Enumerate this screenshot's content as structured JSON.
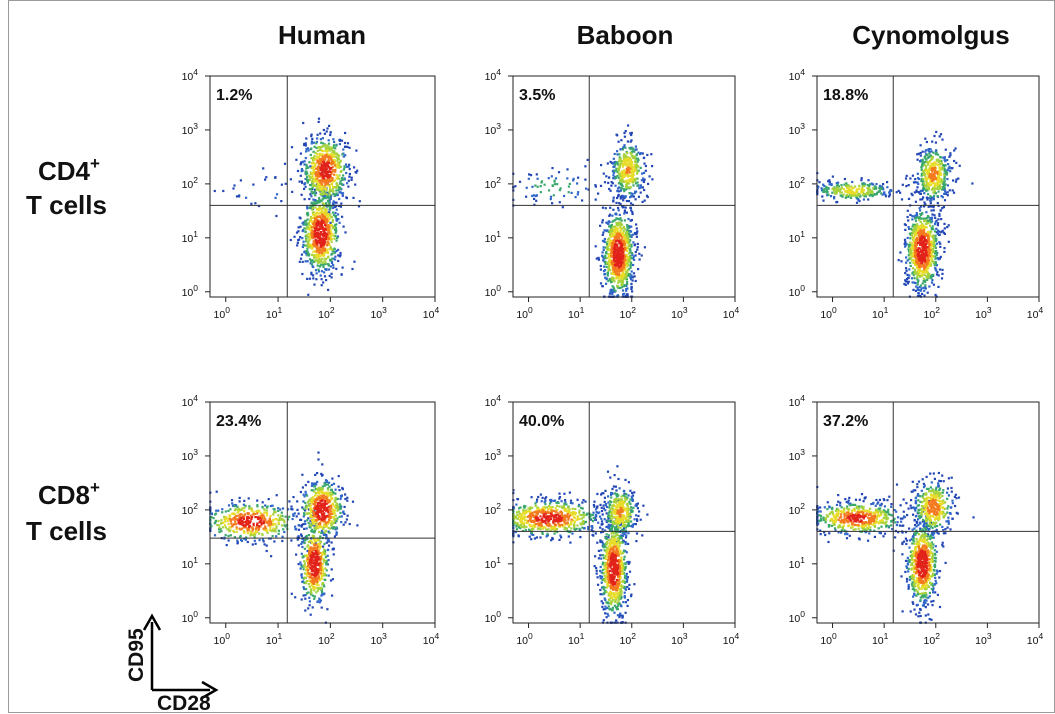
{
  "figure": {
    "column_headers": [
      "Human",
      "Baboon",
      "Cynomolgus"
    ],
    "row_labels": [
      {
        "line1": "CD4",
        "sup": "+",
        "line2": "T cells"
      },
      {
        "line1": "CD8",
        "sup": "+",
        "line2": "T cells"
      }
    ],
    "legend": {
      "y_label": "CD95",
      "x_label": "CD28"
    }
  },
  "chart_data": [
    {
      "type": "scatter",
      "species": "Human",
      "cell_type": "CD4+ T cells",
      "quadrant_percent": "1.2%",
      "x_scale": "log",
      "y_scale": "log",
      "xlim": [
        0.5,
        10000
      ],
      "ylim": [
        0.8,
        10000
      ],
      "x_gate": 15,
      "y_gate": 40,
      "x_ticks": [
        "10^0",
        "10^1",
        "10^2",
        "10^3",
        "10^4"
      ],
      "y_ticks": [
        "10^0",
        "10^1",
        "10^2",
        "10^3",
        "10^4"
      ],
      "populations": [
        {
          "cx": 80,
          "cy": 180,
          "sx": 0.22,
          "sy": 0.32,
          "n": 650
        },
        {
          "cx": 65,
          "cy": 12,
          "sx": 0.18,
          "sy": 0.38,
          "n": 750
        },
        {
          "cx": 5,
          "cy": 70,
          "sx": 0.55,
          "sy": 0.18,
          "n": 25
        }
      ]
    },
    {
      "type": "scatter",
      "species": "Baboon",
      "cell_type": "CD4+ T cells",
      "quadrant_percent": "3.5%",
      "x_scale": "log",
      "y_scale": "log",
      "xlim": [
        0.5,
        10000
      ],
      "ylim": [
        0.8,
        10000
      ],
      "x_gate": 15,
      "y_gate": 40,
      "x_ticks": [
        "10^0",
        "10^1",
        "10^2",
        "10^3",
        "10^4"
      ],
      "y_ticks": [
        "10^0",
        "10^1",
        "10^2",
        "10^3",
        "10^4"
      ],
      "populations": [
        {
          "cx": 85,
          "cy": 180,
          "sx": 0.17,
          "sy": 0.28,
          "n": 380
        },
        {
          "cx": 55,
          "cy": 5,
          "sx": 0.15,
          "sy": 0.4,
          "n": 850
        },
        {
          "cx": 3,
          "cy": 85,
          "sx": 0.5,
          "sy": 0.18,
          "n": 80
        }
      ]
    },
    {
      "type": "scatter",
      "species": "Cynomolgus",
      "cell_type": "CD4+ T cells",
      "quadrant_percent": "18.8%",
      "x_scale": "log",
      "y_scale": "log",
      "xlim": [
        0.5,
        10000
      ],
      "ylim": [
        0.8,
        10000
      ],
      "x_gate": 15,
      "y_gate": 40,
      "x_ticks": [
        "10^0",
        "10^1",
        "10^2",
        "10^3",
        "10^4"
      ],
      "y_ticks": [
        "10^0",
        "10^1",
        "10^2",
        "10^3",
        "10^4"
      ],
      "populations": [
        {
          "cx": 90,
          "cy": 150,
          "sx": 0.17,
          "sy": 0.27,
          "n": 420
        },
        {
          "cx": 55,
          "cy": 6,
          "sx": 0.16,
          "sy": 0.38,
          "n": 800
        },
        {
          "cx": 2.5,
          "cy": 75,
          "sx": 0.42,
          "sy": 0.1,
          "n": 260
        }
      ]
    },
    {
      "type": "scatter",
      "species": "Human",
      "cell_type": "CD8+ T cells",
      "quadrant_percent": "23.4%",
      "x_scale": "log",
      "y_scale": "log",
      "xlim": [
        0.5,
        10000
      ],
      "ylim": [
        0.8,
        10000
      ],
      "x_gate": 15,
      "y_gate": 30,
      "x_ticks": [
        "10^0",
        "10^1",
        "10^2",
        "10^3",
        "10^4"
      ],
      "y_ticks": [
        "10^0",
        "10^1",
        "10^2",
        "10^3",
        "10^4"
      ],
      "populations": [
        {
          "cx": 70,
          "cy": 100,
          "sx": 0.2,
          "sy": 0.28,
          "n": 500
        },
        {
          "cx": 50,
          "cy": 10,
          "sx": 0.14,
          "sy": 0.38,
          "n": 500
        },
        {
          "cx": 3,
          "cy": 60,
          "sx": 0.45,
          "sy": 0.18,
          "n": 450
        }
      ]
    },
    {
      "type": "scatter",
      "species": "Baboon",
      "cell_type": "CD8+ T cells",
      "quadrant_percent": "40.0%",
      "x_scale": "log",
      "y_scale": "log",
      "xlim": [
        0.5,
        10000
      ],
      "ylim": [
        0.8,
        10000
      ],
      "x_gate": 15,
      "y_gate": 40,
      "x_ticks": [
        "10^0",
        "10^1",
        "10^2",
        "10^3",
        "10^4"
      ],
      "y_ticks": [
        "10^0",
        "10^1",
        "10^2",
        "10^3",
        "10^4"
      ],
      "populations": [
        {
          "cx": 60,
          "cy": 90,
          "sx": 0.17,
          "sy": 0.25,
          "n": 350
        },
        {
          "cx": 45,
          "cy": 8,
          "sx": 0.13,
          "sy": 0.45,
          "n": 750
        },
        {
          "cx": 2.5,
          "cy": 70,
          "sx": 0.5,
          "sy": 0.17,
          "n": 650
        }
      ]
    },
    {
      "type": "scatter",
      "species": "Cynomolgus",
      "cell_type": "CD8+ T cells",
      "quadrant_percent": "37.2%",
      "x_scale": "log",
      "y_scale": "log",
      "xlim": [
        0.5,
        10000
      ],
      "ylim": [
        0.8,
        10000
      ],
      "x_gate": 15,
      "y_gate": 40,
      "x_ticks": [
        "10^0",
        "10^1",
        "10^2",
        "10^3",
        "10^4"
      ],
      "y_ticks": [
        "10^0",
        "10^1",
        "10^2",
        "10^3",
        "10^4"
      ],
      "populations": [
        {
          "cx": 90,
          "cy": 110,
          "sx": 0.2,
          "sy": 0.25,
          "n": 380
        },
        {
          "cx": 55,
          "cy": 10,
          "sx": 0.15,
          "sy": 0.38,
          "n": 650
        },
        {
          "cx": 3,
          "cy": 70,
          "sx": 0.45,
          "sy": 0.15,
          "n": 520
        }
      ]
    }
  ]
}
